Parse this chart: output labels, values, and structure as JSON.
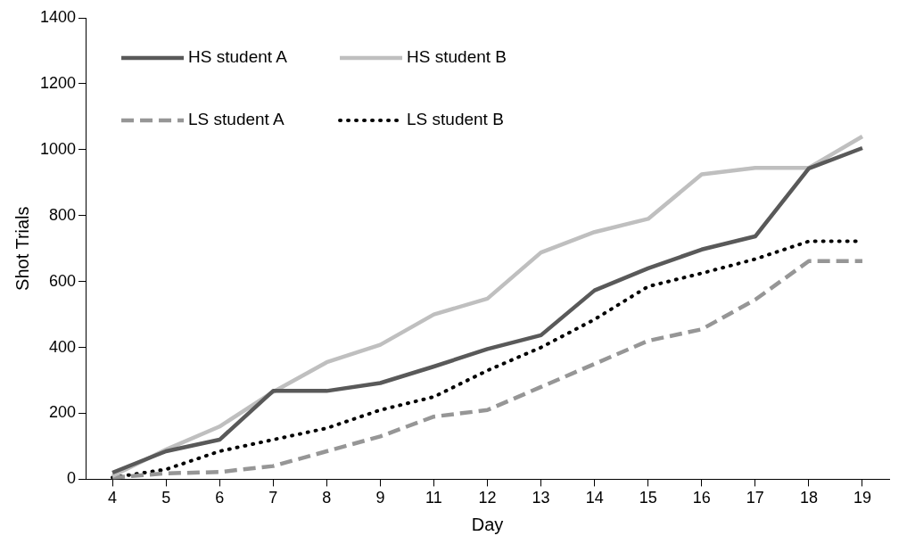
{
  "chart_data": {
    "type": "line",
    "xlabel": "Day",
    "ylabel": "Shot Trials",
    "categories": [
      "4",
      "5",
      "6",
      "7",
      "8",
      "9",
      "11",
      "12",
      "13",
      "14",
      "15",
      "16",
      "17",
      "18",
      "19"
    ],
    "ylim": [
      0,
      1400
    ],
    "yticks": [
      0,
      200,
      400,
      600,
      800,
      1000,
      1200,
      1400
    ],
    "grid": false,
    "legend": "top left",
    "marker": "none",
    "series": [
      {
        "name": "HS student A",
        "color": "#595959",
        "line_style": "solid",
        "values": [
          20,
          85,
          120,
          268,
          268,
          292,
          342,
          395,
          437,
          573,
          640,
          697,
          737,
          943,
          1005
        ]
      },
      {
        "name": "HS student B",
        "color": "#bfbfbf",
        "line_style": "solid",
        "values": [
          10,
          90,
          160,
          265,
          355,
          408,
          500,
          548,
          688,
          750,
          790,
          925,
          945,
          945,
          1040
        ]
      },
      {
        "name": "LS student A",
        "color": "#969696",
        "line_style": "dashed",
        "values": [
          5,
          18,
          22,
          40,
          85,
          130,
          190,
          210,
          280,
          350,
          420,
          455,
          545,
          662,
          662
        ]
      },
      {
        "name": "LS student B",
        "color": "#000000",
        "line_style": "dotted",
        "values": [
          5,
          30,
          85,
          120,
          155,
          210,
          250,
          330,
          400,
          485,
          585,
          625,
          668,
          722,
          722
        ]
      }
    ]
  }
}
